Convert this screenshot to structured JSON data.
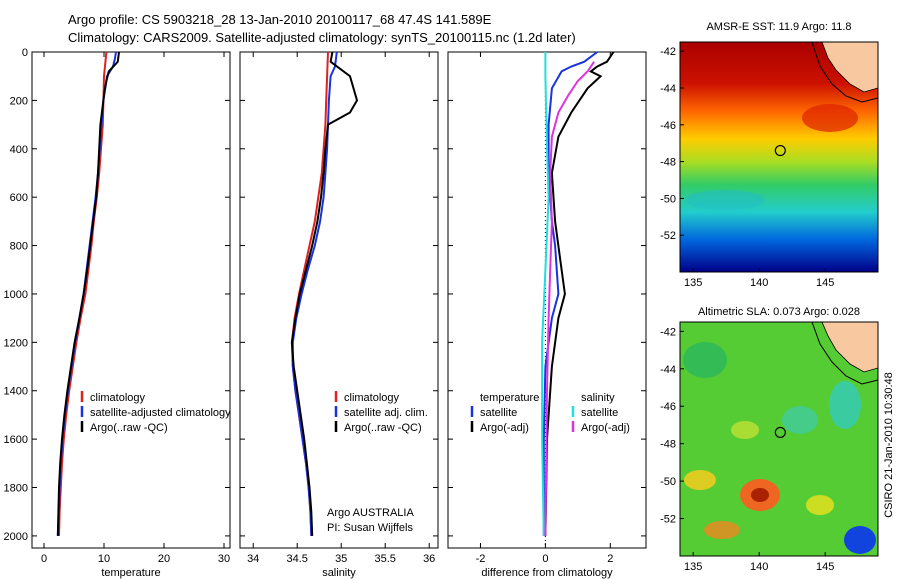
{
  "figure": {
    "title_line1": "Argo profile: CS 5903218_28 13-Jan-2010 20100117_68 47.4S 141.589E",
    "title_line2": "Climatology: CARS2009. Satellite-adjusted climatology: synTS_20100115.nc (1.2d later)",
    "credit": "CSIRO 21-Jan-2010 10:30:48",
    "note_line1": "Argo AUSTRALIA",
    "note_line2": "PI: Susan Wijffels"
  },
  "colors": {
    "climatology": "#dd2222",
    "satellite": "#1a33dd",
    "argo": "#000000",
    "sal_satellite": "#22dddd",
    "sal_argo": "#dd33dd",
    "land": "#f8c8a0"
  },
  "chart_data": [
    {
      "type": "line",
      "name": "temperature-profile",
      "xlabel": "temperature",
      "ylabel": "",
      "xlim": [
        -2,
        31
      ],
      "ylim": [
        2050,
        0
      ],
      "xticks": [
        0,
        10,
        20,
        30
      ],
      "yticks": [
        0,
        200,
        400,
        600,
        800,
        1000,
        1200,
        1400,
        1600,
        1800,
        2000
      ],
      "legend_position": "lower-right",
      "legend": [
        "climatology",
        "satellite-adjusted climatology",
        "Argo(..raw -QC)"
      ],
      "series": [
        {
          "name": "climatology",
          "color_key": "climatology",
          "points": [
            [
              10.4,
              0
            ],
            [
              10.2,
              50
            ],
            [
              10.0,
              100
            ],
            [
              9.9,
              200
            ],
            [
              9.8,
              300
            ],
            [
              9.5,
              400
            ],
            [
              9.2,
              500
            ],
            [
              8.8,
              600
            ],
            [
              8.3,
              700
            ],
            [
              7.9,
              800
            ],
            [
              7.4,
              900
            ],
            [
              6.9,
              1000
            ],
            [
              6.1,
              1100
            ],
            [
              5.4,
              1200
            ],
            [
              4.8,
              1300
            ],
            [
              4.2,
              1400
            ],
            [
              3.7,
              1500
            ],
            [
              3.3,
              1600
            ],
            [
              3.0,
              1700
            ],
            [
              2.8,
              1800
            ],
            [
              2.6,
              1900
            ],
            [
              2.5,
              2000
            ]
          ]
        },
        {
          "name": "satellite-adjusted climatology",
          "color_key": "satellite",
          "points": [
            [
              12.0,
              0
            ],
            [
              11.8,
              30
            ],
            [
              11.5,
              60
            ],
            [
              10.5,
              100
            ],
            [
              9.9,
              200
            ],
            [
              9.6,
              300
            ],
            [
              9.3,
              400
            ],
            [
              9.0,
              500
            ],
            [
              8.6,
              600
            ],
            [
              8.1,
              700
            ],
            [
              7.6,
              800
            ],
            [
              7.1,
              900
            ],
            [
              6.6,
              1000
            ],
            [
              5.9,
              1100
            ],
            [
              5.2,
              1200
            ],
            [
              4.6,
              1300
            ],
            [
              4.0,
              1400
            ],
            [
              3.5,
              1500
            ],
            [
              3.1,
              1600
            ],
            [
              2.8,
              1700
            ],
            [
              2.6,
              1800
            ],
            [
              2.5,
              1900
            ],
            [
              2.4,
              2000
            ]
          ]
        },
        {
          "name": "Argo(..raw -QC)",
          "color_key": "argo",
          "points": [
            [
              12.5,
              0
            ],
            [
              12.3,
              40
            ],
            [
              10.8,
              80
            ],
            [
              10.4,
              120
            ],
            [
              10.1,
              160
            ],
            [
              9.9,
              200
            ],
            [
              9.7,
              240
            ],
            [
              9.4,
              300
            ],
            [
              9.2,
              400
            ],
            [
              9.0,
              500
            ],
            [
              8.7,
              600
            ],
            [
              8.2,
              700
            ],
            [
              7.7,
              800
            ],
            [
              7.2,
              900
            ],
            [
              6.6,
              1000
            ],
            [
              5.9,
              1100
            ],
            [
              5.1,
              1200
            ],
            [
              4.5,
              1300
            ],
            [
              3.9,
              1400
            ],
            [
              3.4,
              1500
            ],
            [
              3.0,
              1600
            ],
            [
              2.7,
              1700
            ],
            [
              2.5,
              1800
            ],
            [
              2.4,
              1900
            ],
            [
              2.3,
              2000
            ]
          ]
        }
      ]
    },
    {
      "type": "line",
      "name": "salinity-profile",
      "xlabel": "salinity",
      "ylabel": "",
      "xlim": [
        33.85,
        36.1
      ],
      "ylim": [
        2050,
        0
      ],
      "xticks": [
        34,
        34.5,
        35,
        35.5,
        36
      ],
      "xticklabels": [
        "34",
        "34.5",
        "35",
        "35.5",
        "36"
      ],
      "legend_position": "lower-right",
      "legend": [
        "climatology",
        "satellite adj. clim.",
        "Argo(..raw -QC)"
      ],
      "series": [
        {
          "name": "climatology",
          "color_key": "climatology",
          "points": [
            [
              34.85,
              0
            ],
            [
              34.84,
              100
            ],
            [
              34.83,
              200
            ],
            [
              34.82,
              300
            ],
            [
              34.8,
              400
            ],
            [
              34.78,
              500
            ],
            [
              34.74,
              600
            ],
            [
              34.7,
              700
            ],
            [
              34.64,
              800
            ],
            [
              34.58,
              900
            ],
            [
              34.52,
              1000
            ],
            [
              34.47,
              1100
            ],
            [
              34.44,
              1200
            ],
            [
              34.45,
              1300
            ],
            [
              34.48,
              1400
            ],
            [
              34.52,
              1500
            ],
            [
              34.56,
              1600
            ],
            [
              34.6,
              1700
            ],
            [
              34.63,
              1800
            ],
            [
              34.65,
              1900
            ],
            [
              34.66,
              2000
            ]
          ]
        },
        {
          "name": "satellite adj. clim.",
          "color_key": "satellite",
          "points": [
            [
              34.95,
              0
            ],
            [
              34.93,
              60
            ],
            [
              34.88,
              100
            ],
            [
              34.86,
              200
            ],
            [
              34.85,
              300
            ],
            [
              34.84,
              400
            ],
            [
              34.82,
              500
            ],
            [
              34.8,
              600
            ],
            [
              34.76,
              700
            ],
            [
              34.7,
              800
            ],
            [
              34.62,
              900
            ],
            [
              34.55,
              1000
            ],
            [
              34.49,
              1100
            ],
            [
              34.45,
              1200
            ],
            [
              34.45,
              1300
            ],
            [
              34.48,
              1400
            ],
            [
              34.52,
              1500
            ],
            [
              34.56,
              1600
            ],
            [
              34.6,
              1700
            ],
            [
              34.63,
              1800
            ],
            [
              34.65,
              1900
            ],
            [
              34.66,
              2000
            ]
          ]
        },
        {
          "name": "Argo(..raw -QC)",
          "color_key": "argo",
          "points": [
            [
              34.9,
              0
            ],
            [
              34.88,
              40
            ],
            [
              35.1,
              100
            ],
            [
              35.18,
              200
            ],
            [
              35.1,
              250
            ],
            [
              34.85,
              300
            ],
            [
              34.82,
              400
            ],
            [
              34.8,
              500
            ],
            [
              34.77,
              600
            ],
            [
              34.73,
              700
            ],
            [
              34.67,
              800
            ],
            [
              34.6,
              900
            ],
            [
              34.53,
              1000
            ],
            [
              34.48,
              1100
            ],
            [
              34.44,
              1200
            ],
            [
              34.46,
              1300
            ],
            [
              34.5,
              1400
            ],
            [
              34.54,
              1500
            ],
            [
              34.58,
              1600
            ],
            [
              34.61,
              1700
            ],
            [
              34.64,
              1800
            ],
            [
              34.66,
              1900
            ],
            [
              34.67,
              2000
            ]
          ]
        }
      ]
    },
    {
      "type": "line",
      "name": "difference-profile",
      "xlabel": "difference from climatology",
      "ylabel": "",
      "xlim": [
        -3,
        3.1
      ],
      "ylim": [
        2050,
        0
      ],
      "xticks": [
        -2,
        0,
        2
      ],
      "legend_position": "lower-center",
      "legend": [
        "temperature",
        "satellite",
        "Argo(-adj)",
        "salinity",
        "satellite",
        "Argo(-adj)"
      ],
      "series": [
        {
          "name": "temperature satellite",
          "color_key": "satellite",
          "points": [
            [
              1.6,
              0
            ],
            [
              1.2,
              40
            ],
            [
              0.8,
              60
            ],
            [
              0.5,
              80
            ],
            [
              0.2,
              150
            ],
            [
              0.1,
              300
            ],
            [
              0.1,
              500
            ],
            [
              0.2,
              700
            ],
            [
              0.3,
              800
            ],
            [
              0.4,
              1000
            ],
            [
              0.2,
              1100
            ],
            [
              0.0,
              1300
            ],
            [
              -0.05,
              1600
            ],
            [
              -0.05,
              2000
            ]
          ]
        },
        {
          "name": "temperature Argo(-adj)",
          "color_key": "argo",
          "points": [
            [
              2.1,
              0
            ],
            [
              1.9,
              40
            ],
            [
              1.6,
              60
            ],
            [
              1.4,
              80
            ],
            [
              1.7,
              100
            ],
            [
              1.3,
              150
            ],
            [
              0.8,
              250
            ],
            [
              0.4,
              350
            ],
            [
              0.2,
              500
            ],
            [
              0.3,
              700
            ],
            [
              0.5,
              900
            ],
            [
              0.6,
              1000
            ],
            [
              0.4,
              1100
            ],
            [
              0.2,
              1300
            ],
            [
              0.05,
              1600
            ],
            [
              0.0,
              2000
            ]
          ]
        },
        {
          "name": "salinity satellite",
          "color_key": "sal_satellite",
          "points": [
            [
              0.0,
              0
            ],
            [
              0.0,
              100
            ],
            [
              0.05,
              400
            ],
            [
              0.1,
              600
            ],
            [
              0.0,
              900
            ],
            [
              -0.1,
              1200
            ],
            [
              -0.1,
              1600
            ],
            [
              -0.05,
              2000
            ]
          ]
        },
        {
          "name": "salinity Argo(-adj)",
          "color_key": "sal_argo",
          "points": [
            [
              1.5,
              40
            ],
            [
              1.3,
              80
            ],
            [
              1.0,
              120
            ],
            [
              0.7,
              180
            ],
            [
              0.4,
              250
            ],
            [
              0.2,
              350
            ],
            [
              0.15,
              500
            ],
            [
              0.2,
              700
            ],
            [
              0.15,
              900
            ],
            [
              0.1,
              1100
            ],
            [
              0.05,
              1400
            ],
            [
              0.0,
              2000
            ]
          ]
        }
      ]
    },
    {
      "type": "heatmap",
      "name": "sst-map",
      "title": "AMSR-E SST: 11.9  Argo: 11.8",
      "xlim": [
        134,
        149
      ],
      "ylim": [
        -54,
        -41.5
      ],
      "xticks": [
        135,
        140,
        145
      ],
      "yticks": [
        -42,
        -44,
        -46,
        -48,
        -50,
        -52
      ],
      "marker": [
        141.6,
        -47.4
      ],
      "colormap": "jet",
      "gradient": "warm north, cold south"
    },
    {
      "type": "heatmap",
      "name": "sla-map",
      "title": "Altimetric SLA: 0.073  Argo: 0.028",
      "xlim": [
        134,
        149
      ],
      "ylim": [
        -54,
        -41.5
      ],
      "xticks": [
        135,
        140,
        145
      ],
      "yticks": [
        -42,
        -44,
        -46,
        -48,
        -50,
        -52
      ],
      "marker": [
        141.6,
        -47.4
      ],
      "colormap": "jet",
      "gradient": "mostly near zero"
    }
  ]
}
